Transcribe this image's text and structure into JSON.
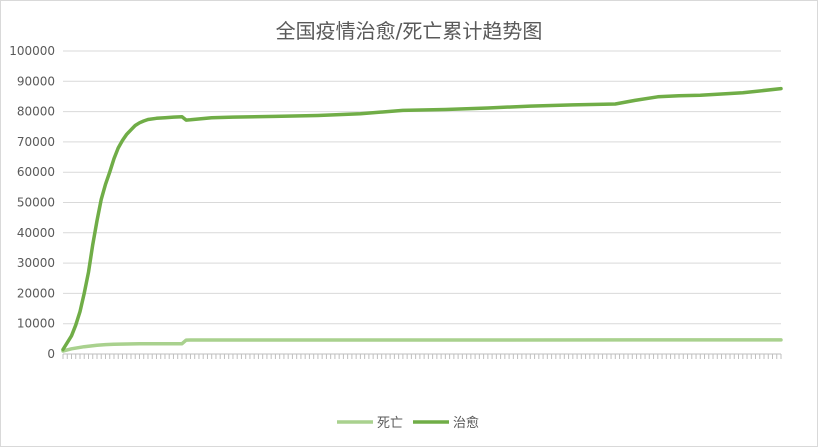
{
  "chart_data": {
    "type": "line",
    "title": "全国疫情治愈/死亡累计趋势图",
    "xlabel": "",
    "ylabel": "",
    "ylim": [
      0,
      100000
    ],
    "yticks": [
      0,
      10000,
      20000,
      30000,
      40000,
      50000,
      60000,
      70000,
      80000,
      90000,
      100000
    ],
    "grid": true,
    "legend_position": "bottom",
    "x_count": 170,
    "series": [
      {
        "name": "死亡",
        "color": "#a9d18e",
        "x": [
          0,
          2,
          5,
          8,
          10,
          12,
          15,
          18,
          20,
          24,
          26,
          28,
          29,
          30,
          169
        ],
        "values": [
          1000,
          1700,
          2400,
          2900,
          3100,
          3200,
          3300,
          3350,
          3350,
          3400,
          3400,
          3400,
          4600,
          4630,
          4640
        ]
      },
      {
        "name": "治愈",
        "color": "#70ad47",
        "x": [
          0,
          2,
          3,
          4,
          5,
          6,
          7,
          8,
          9,
          10,
          11,
          12,
          13,
          14,
          15,
          16,
          17,
          18,
          19,
          20,
          22,
          24,
          26,
          28,
          29,
          30,
          35,
          40,
          50,
          60,
          70,
          80,
          90,
          100,
          110,
          120,
          130,
          135,
          140,
          145,
          150,
          160,
          169
        ],
        "values": [
          1500,
          6000,
          9500,
          14000,
          20000,
          27000,
          36000,
          44000,
          51000,
          56000,
          60000,
          64500,
          68000,
          70500,
          72500,
          74000,
          75400,
          76300,
          76900,
          77400,
          77800,
          78000,
          78200,
          78300,
          77200,
          77300,
          78000,
          78200,
          78400,
          78700,
          79300,
          80400,
          80700,
          81200,
          81800,
          82200,
          82500,
          83800,
          84900,
          85200,
          85400,
          86200,
          87600
        ]
      }
    ]
  }
}
